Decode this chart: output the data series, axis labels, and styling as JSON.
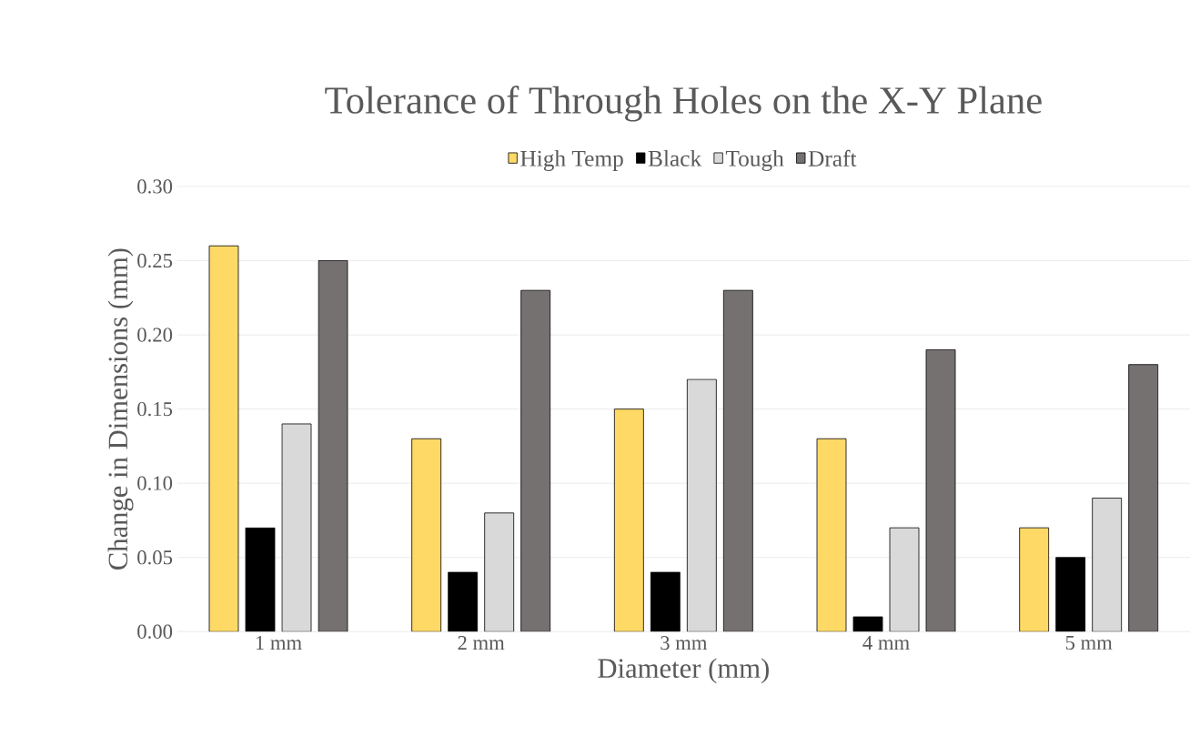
{
  "chart_data": {
    "type": "bar",
    "title": "Tolerance of Through Holes on the X-Y Plane",
    "xlabel": "Diameter (mm)",
    "ylabel": "Change in Dimensions (mm)",
    "categories": [
      "1 mm",
      "2 mm",
      "3 mm",
      "4 mm",
      "5 mm"
    ],
    "series": [
      {
        "name": "High Temp",
        "color": "#ffd966",
        "values": [
          0.26,
          0.13,
          0.15,
          0.13,
          0.07
        ]
      },
      {
        "name": "Black",
        "color": "#000000",
        "values": [
          0.07,
          0.04,
          0.04,
          0.01,
          0.05
        ]
      },
      {
        "name": "Tough",
        "color": "#d9d9d9",
        "values": [
          0.14,
          0.08,
          0.17,
          0.07,
          0.09
        ]
      },
      {
        "name": "Draft",
        "color": "#767171",
        "values": [
          0.25,
          0.23,
          0.23,
          0.19,
          0.18
        ]
      }
    ],
    "ylim": [
      0,
      0.3
    ],
    "yticks": [
      {
        "value": 0,
        "label": "0.00"
      },
      {
        "value": 0.05,
        "label": "0.05"
      },
      {
        "value": 0.1,
        "label": "0.10"
      },
      {
        "value": 0.15,
        "label": "0.15"
      },
      {
        "value": 0.2,
        "label": "0.20"
      },
      {
        "value": 0.25,
        "label": "0.25"
      },
      {
        "value": 0.3,
        "label": "0.30"
      }
    ],
    "grid": "y",
    "legend": "top"
  }
}
